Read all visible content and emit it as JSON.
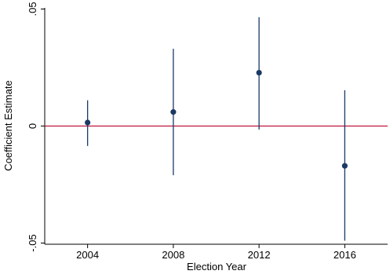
{
  "chart_data": {
    "type": "scatter",
    "title": "",
    "xlabel": "Election Year",
    "ylabel": "Coefficient Estimate",
    "x_ticks": [
      2004,
      2008,
      2012,
      2016
    ],
    "x_tick_labels": [
      "2004",
      "2008",
      "2012",
      "2016"
    ],
    "y_ticks": [
      0.05,
      0,
      -0.05
    ],
    "y_tick_labels": [
      ".05",
      "0",
      "-.05"
    ],
    "xlim": [
      2002,
      2018
    ],
    "ylim": [
      -0.0505,
      0.0505
    ],
    "grid": false,
    "reference_line": {
      "y": 0,
      "color": "#c0143c"
    },
    "marker_color": "#1a3a63",
    "points": [
      {
        "x": 2004,
        "y": 0.0015,
        "ci_low": -0.0085,
        "ci_high": 0.011
      },
      {
        "x": 2008,
        "y": 0.006,
        "ci_low": -0.021,
        "ci_high": 0.033
      },
      {
        "x": 2012,
        "y": 0.0228,
        "ci_low": -0.0015,
        "ci_high": 0.0465
      },
      {
        "x": 2016,
        "y": -0.017,
        "ci_low": -0.049,
        "ci_high": 0.0153
      }
    ]
  }
}
